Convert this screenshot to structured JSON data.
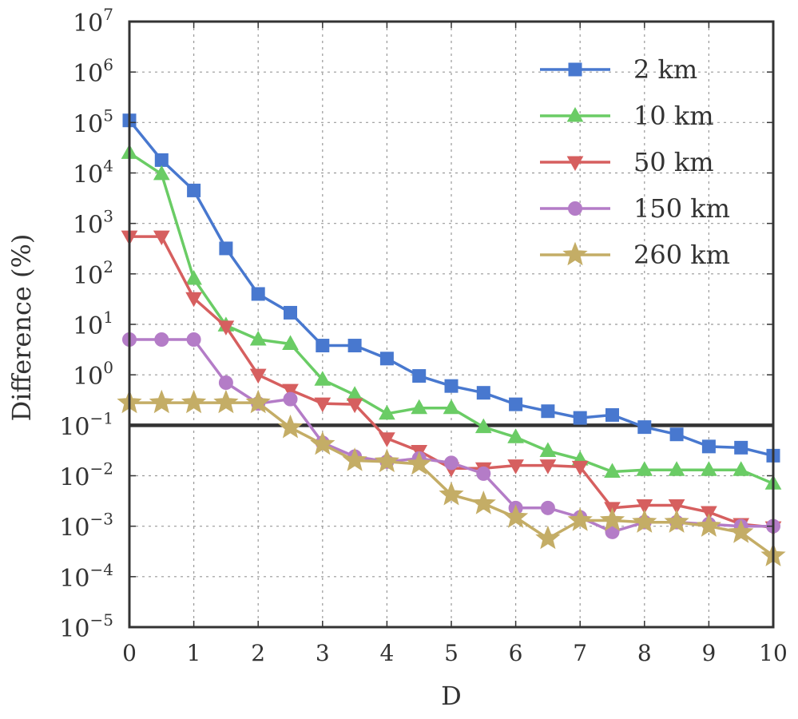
{
  "chart_data": {
    "type": "line",
    "xlabel": "D",
    "ylabel": "Difference (%)",
    "yscale": "log",
    "xlim": [
      0,
      10
    ],
    "ylim": [
      1e-05,
      10000000.0
    ],
    "xticks": [
      "0",
      "1",
      "2",
      "3",
      "4",
      "5",
      "6",
      "7",
      "8",
      "9",
      "10"
    ],
    "yticks": [
      {
        "base": "10",
        "exp": "7"
      },
      {
        "base": "10",
        "exp": "6"
      },
      {
        "base": "10",
        "exp": "5"
      },
      {
        "base": "10",
        "exp": "4"
      },
      {
        "base": "10",
        "exp": "3"
      },
      {
        "base": "10",
        "exp": "2"
      },
      {
        "base": "10",
        "exp": "1"
      },
      {
        "base": "10",
        "exp": "0"
      },
      {
        "base": "10",
        "exp": "−1"
      },
      {
        "base": "10",
        "exp": "−2"
      },
      {
        "base": "10",
        "exp": "−3"
      },
      {
        "base": "10",
        "exp": "−4"
      },
      {
        "base": "10",
        "exp": "−5"
      }
    ],
    "grid": true,
    "legend_position": "top-right",
    "reference_line": 0.1,
    "x": [
      0,
      0.5,
      1,
      1.5,
      2,
      2.5,
      3,
      3.5,
      4,
      4.5,
      5,
      5.5,
      6,
      6.5,
      7,
      7.5,
      8,
      8.5,
      9,
      9.5,
      10
    ],
    "series": [
      {
        "name": "2 km",
        "color": "#4878cf",
        "marker": "square",
        "values": [
          110000,
          18000,
          4500,
          320,
          40,
          17,
          3.8,
          3.8,
          2.1,
          0.95,
          0.6,
          0.44,
          0.26,
          0.19,
          0.14,
          0.16,
          0.092,
          0.066,
          0.038,
          0.036,
          0.025
        ]
      },
      {
        "name": "10 km",
        "color": "#6acc65",
        "marker": "triangle-up",
        "values": [
          25000,
          9500,
          80,
          9.5,
          5,
          4.1,
          0.8,
          0.4,
          0.17,
          0.22,
          0.22,
          0.092,
          0.058,
          0.031,
          0.021,
          0.012,
          0.013,
          0.013,
          0.013,
          0.013,
          0.007
        ]
      },
      {
        "name": "50 km",
        "color": "#d65f5f",
        "marker": "triangle-down",
        "values": [
          550,
          550,
          33,
          9,
          1,
          0.5,
          0.27,
          0.26,
          0.055,
          0.031,
          0.014,
          0.014,
          0.016,
          0.016,
          0.015,
          0.0023,
          0.0026,
          0.0026,
          0.0019,
          0.0011,
          0.00095
        ]
      },
      {
        "name": "150 km",
        "color": "#b47cc7",
        "marker": "circle",
        "values": [
          5,
          5,
          5,
          0.7,
          0.27,
          0.33,
          0.045,
          0.024,
          0.019,
          0.022,
          0.018,
          0.011,
          0.0023,
          0.0023,
          0.0015,
          0.00077,
          0.0012,
          0.0012,
          0.0011,
          0.001,
          0.001
        ]
      },
      {
        "name": "260 km",
        "color": "#c4ad66",
        "marker": "star",
        "values": [
          0.28,
          0.28,
          0.28,
          0.28,
          0.28,
          0.09,
          0.042,
          0.02,
          0.019,
          0.017,
          0.0042,
          0.0028,
          0.0015,
          0.00057,
          0.0013,
          0.0013,
          0.0012,
          0.0012,
          0.001,
          0.00075,
          0.00026
        ]
      }
    ]
  }
}
